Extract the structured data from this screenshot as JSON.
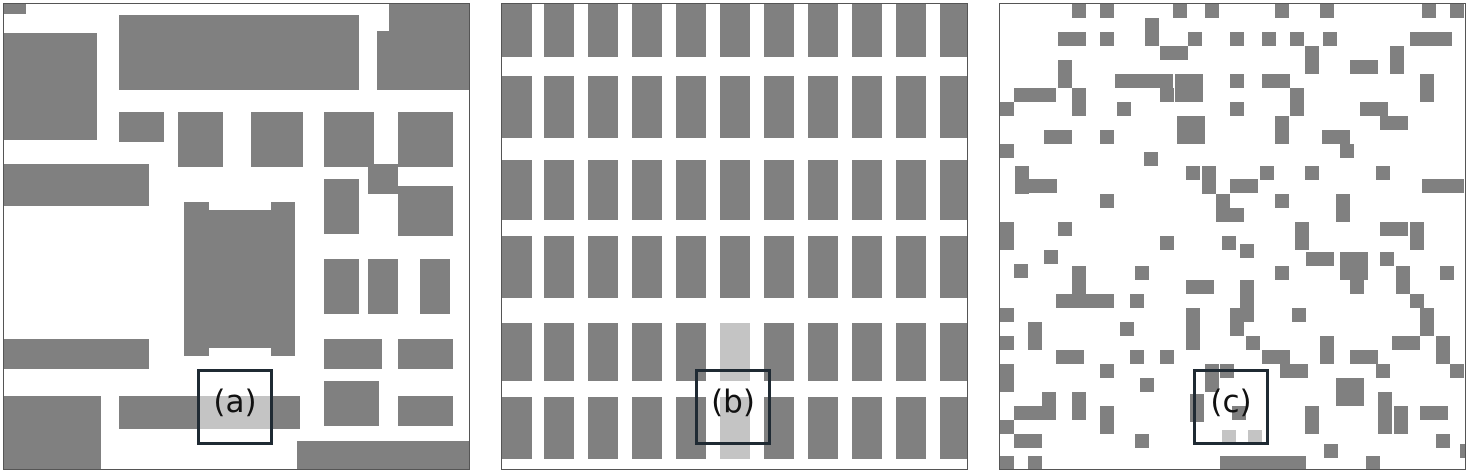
{
  "figure": {
    "panels": [
      {
        "id": "a",
        "label": "(a)"
      },
      {
        "id": "b",
        "label": "(b)"
      },
      {
        "id": "c",
        "label": "(c)"
      }
    ]
  },
  "colors": {
    "building": "#808080",
    "highlighted_building": "#c4c4c4",
    "road": "#ffffff",
    "label_box_border": "#1f2a33"
  }
}
